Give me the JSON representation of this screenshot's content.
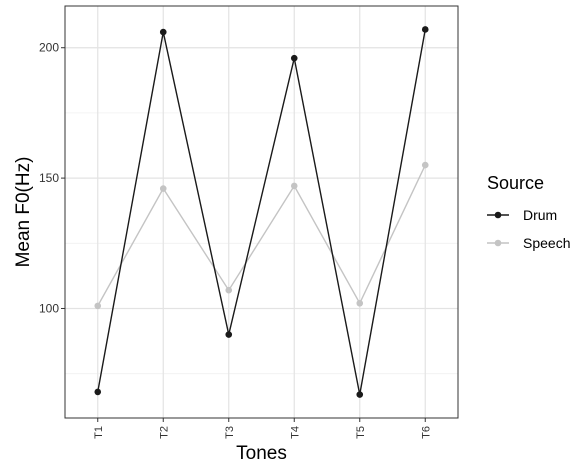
{
  "chart_data": {
    "type": "line",
    "categories": [
      "T1",
      "T2",
      "T3",
      "T4",
      "T5",
      "T6"
    ],
    "series": [
      {
        "name": "Drum",
        "color": "#1a1a1a",
        "values": [
          68,
          206,
          90,
          196,
          67,
          207
        ]
      },
      {
        "name": "Speech",
        "color": "#c4c4c4",
        "values": [
          101,
          146,
          107,
          147,
          102,
          155
        ]
      }
    ],
    "title": "",
    "xlabel": "Tones",
    "ylabel": "Mean F0(Hz)",
    "ylim": [
      58,
      216
    ],
    "yticks": [
      100,
      150,
      200
    ],
    "grid": true,
    "legend": {
      "title": "Source",
      "position": "right"
    }
  }
}
